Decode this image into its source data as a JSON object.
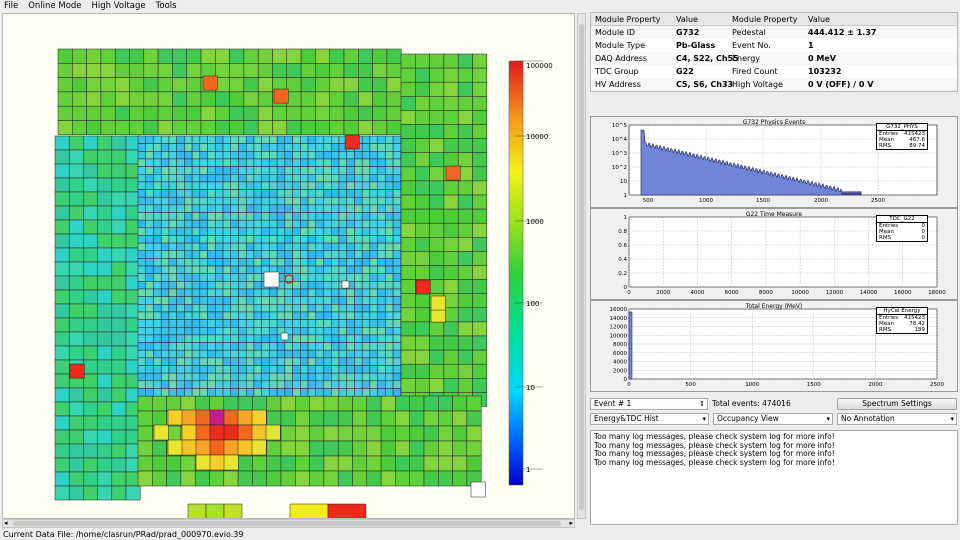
{
  "menu": [
    "File",
    "Online Mode",
    "High Voltage",
    "Tools"
  ],
  "status_text": "Current Data File: /home/clasrun/PRad/prad_000970.evio.39",
  "colorbar": {
    "labels": [
      "100000",
      "10000",
      "1000",
      "100",
      "10",
      "1"
    ]
  },
  "properties": {
    "headers": [
      "Module Property",
      "Value",
      "Module Property",
      "Value"
    ],
    "rows": [
      [
        "Module ID",
        "G732",
        "Pedestal",
        "444.412 ± 1.37"
      ],
      [
        "Module Type",
        "Pb-Glass",
        "Event No.",
        "1"
      ],
      [
        "DAQ Address",
        "C4, S22, Ch55",
        "Energy",
        "0 MeV"
      ],
      [
        "TDC Group",
        "G22",
        "Fired Count",
        "103232"
      ],
      [
        "HV Address",
        "C5, S6, Ch33",
        "High Voltage",
        "0 V (OFF) / 0 V"
      ]
    ]
  },
  "histograms": [
    {
      "title": "G732 Physics Events",
      "stats_title": "G732_PHYS",
      "stats": [
        [
          "Entries",
          "415423"
        ],
        [
          "Mean",
          "467.6"
        ],
        [
          "RMS",
          "89.74"
        ]
      ],
      "x_ticks": [
        "500",
        "1000",
        "1500",
        "2000",
        "2500"
      ],
      "y_ticks": [
        "10^5",
        "10^4",
        "10^3",
        "10^2",
        "10",
        "1"
      ],
      "log_y": true
    },
    {
      "title": "G22 Time Measure",
      "stats_title": "TDC_G22",
      "stats": [
        [
          "Entries",
          "0"
        ],
        [
          "Mean",
          "0"
        ],
        [
          "RMS",
          "0"
        ]
      ],
      "x_ticks": [
        "0",
        "2000",
        "4000",
        "6000",
        "8000",
        "10000",
        "12000",
        "14000",
        "16000",
        "18000"
      ],
      "y_ticks": [
        "1",
        "0.8",
        "0.6",
        "0.4",
        "0.2",
        "0"
      ],
      "log_y": false
    },
    {
      "title": "Total Energy (MeV)",
      "stats_title": "HyCal Energy",
      "stats": [
        [
          "Entries",
          "415423"
        ],
        [
          "Mean",
          "78.42"
        ],
        [
          "RMS",
          "189"
        ]
      ],
      "x_ticks": [
        "0",
        "500",
        "1000",
        "1500",
        "2000",
        "2500"
      ],
      "y_ticks": [
        "16000",
        "14000",
        "12000",
        "10000",
        "8000",
        "6000",
        "4000",
        "2000",
        "0"
      ],
      "log_y": false
    }
  ],
  "controls": {
    "event_spin": "Event # 1",
    "total_events": "Total events: 474016",
    "spectrum_button": "Spectrum Settings",
    "hist_select": "Energy&TDC Hist",
    "view_select": "Occupancy View",
    "annotation_select": "No Annotation"
  },
  "log_messages": [
    "Too many log messages, please check system log for more info!",
    "Too many log messages, please check system log for more info!",
    "Too many log messages, please check system log for more info!",
    "Too many log messages, please check system log for more info!"
  ],
  "colors": {
    "hist_fill": "#6f85d8",
    "hist_line": "#14145a",
    "canvas_bg": "#fffff4"
  }
}
